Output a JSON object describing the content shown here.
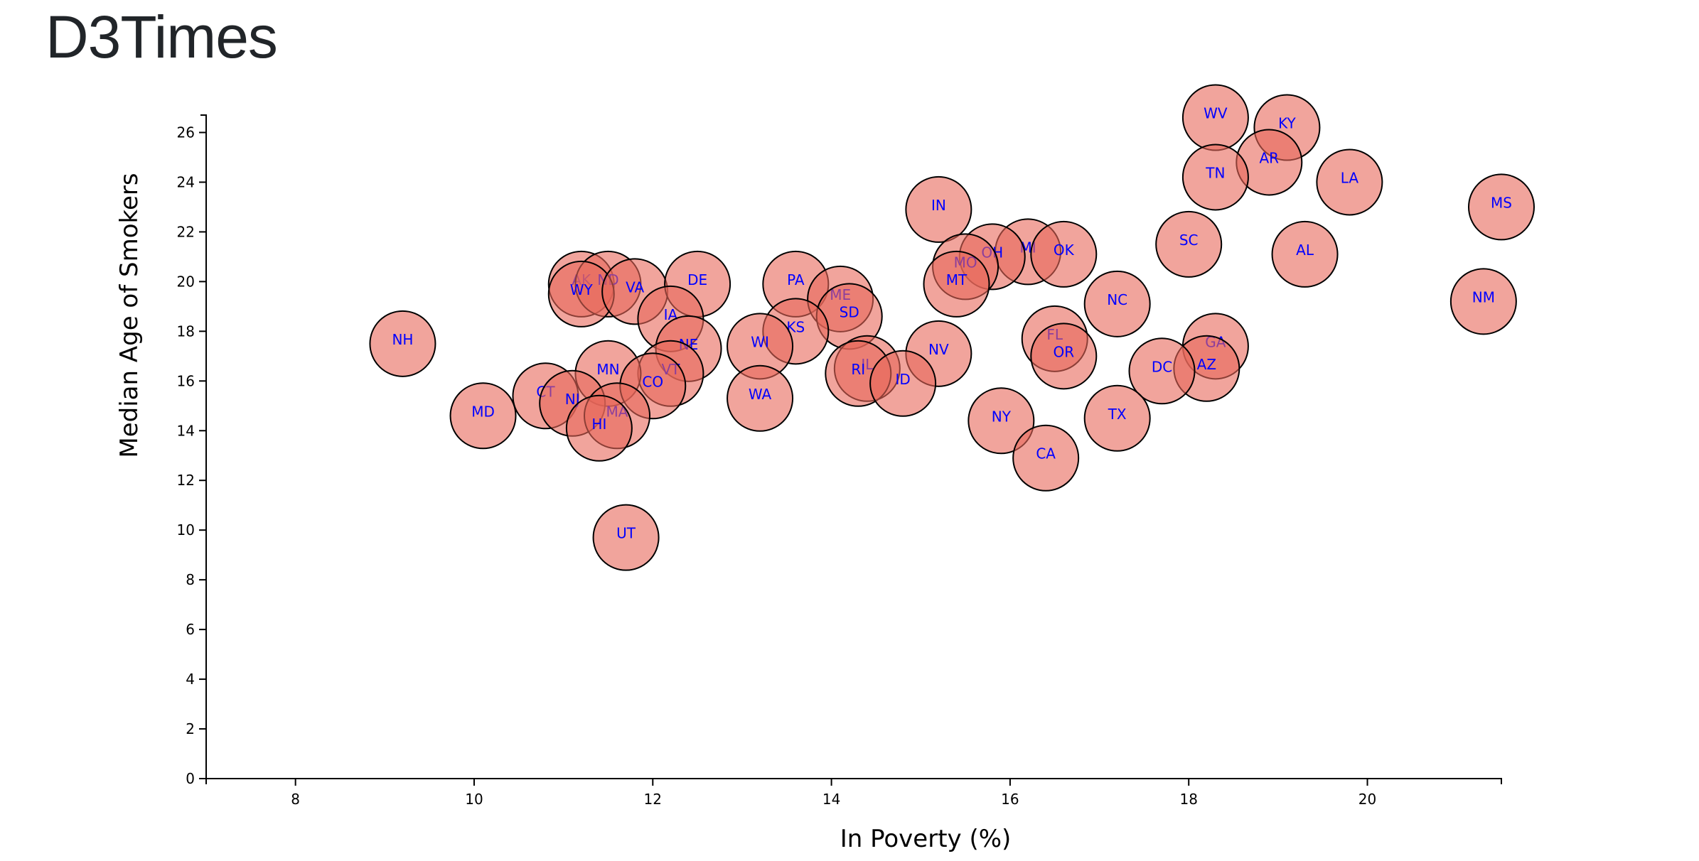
{
  "header": {
    "title": "D3Times"
  },
  "colors": {
    "bubble": "#e8685a",
    "label": "#0000ff",
    "axis": "#000000"
  },
  "chart_data": {
    "type": "scatter",
    "title": "",
    "xlabel": "In Poverty (%)",
    "ylabel": "Median Age of Smokers",
    "xlim": [
      7,
      21.5
    ],
    "ylim": [
      0,
      26.7
    ],
    "xticks": [
      8,
      10,
      12,
      14,
      16,
      18,
      20
    ],
    "yticks": [
      0,
      2,
      4,
      6,
      8,
      10,
      12,
      14,
      16,
      18,
      20,
      22,
      24,
      26
    ],
    "grid": false,
    "points": [
      {
        "label": "WV",
        "x": 18.3,
        "y": 26.6
      },
      {
        "label": "KY",
        "x": 19.1,
        "y": 26.2
      },
      {
        "label": "AR",
        "x": 18.9,
        "y": 24.8
      },
      {
        "label": "TN",
        "x": 18.3,
        "y": 24.2
      },
      {
        "label": "LA",
        "x": 19.8,
        "y": 24.0
      },
      {
        "label": "MS",
        "x": 21.5,
        "y": 23.0
      },
      {
        "label": "IN",
        "x": 15.2,
        "y": 22.9
      },
      {
        "label": "SC",
        "x": 18.0,
        "y": 21.5
      },
      {
        "label": "AL",
        "x": 19.3,
        "y": 21.1
      },
      {
        "label": "MI",
        "x": 16.2,
        "y": 21.2
      },
      {
        "label": "OK",
        "x": 16.6,
        "y": 21.1
      },
      {
        "label": "OH",
        "x": 15.8,
        "y": 21.0
      },
      {
        "label": "MO",
        "x": 15.5,
        "y": 20.6
      },
      {
        "label": "MT",
        "x": 15.4,
        "y": 19.9
      },
      {
        "label": "NC",
        "x": 17.2,
        "y": 19.1
      },
      {
        "label": "NM",
        "x": 21.3,
        "y": 19.2
      },
      {
        "label": "AK",
        "x": 11.2,
        "y": 19.9
      },
      {
        "label": "ND",
        "x": 11.5,
        "y": 19.9
      },
      {
        "label": "WY",
        "x": 11.2,
        "y": 19.5
      },
      {
        "label": "VA",
        "x": 11.8,
        "y": 19.6
      },
      {
        "label": "DE",
        "x": 12.5,
        "y": 19.9
      },
      {
        "label": "PA",
        "x": 13.6,
        "y": 19.9
      },
      {
        "label": "ME",
        "x": 14.1,
        "y": 19.3
      },
      {
        "label": "IA",
        "x": 12.2,
        "y": 18.5
      },
      {
        "label": "SD",
        "x": 14.2,
        "y": 18.6
      },
      {
        "label": "KS",
        "x": 13.6,
        "y": 18.0
      },
      {
        "label": "NH",
        "x": 9.2,
        "y": 17.5
      },
      {
        "label": "FL",
        "x": 16.5,
        "y": 17.7
      },
      {
        "label": "GA",
        "x": 18.3,
        "y": 17.4
      },
      {
        "label": "NE",
        "x": 12.4,
        "y": 17.3
      },
      {
        "label": "WI",
        "x": 13.2,
        "y": 17.4
      },
      {
        "label": "NV",
        "x": 15.2,
        "y": 17.1
      },
      {
        "label": "OR",
        "x": 16.6,
        "y": 17.0
      },
      {
        "label": "AZ",
        "x": 18.2,
        "y": 16.5
      },
      {
        "label": "DC",
        "x": 17.7,
        "y": 16.4
      },
      {
        "label": "IL",
        "x": 14.4,
        "y": 16.5
      },
      {
        "label": "RI",
        "x": 14.3,
        "y": 16.3
      },
      {
        "label": "VT",
        "x": 12.2,
        "y": 16.3
      },
      {
        "label": "MN",
        "x": 11.5,
        "y": 16.3
      },
      {
        "label": "ID",
        "x": 14.8,
        "y": 15.9
      },
      {
        "label": "CO",
        "x": 12.0,
        "y": 15.8
      },
      {
        "label": "CT",
        "x": 10.8,
        "y": 15.4
      },
      {
        "label": "NJ",
        "x": 11.1,
        "y": 15.1
      },
      {
        "label": "WA",
        "x": 13.2,
        "y": 15.3
      },
      {
        "label": "MA",
        "x": 11.6,
        "y": 14.6
      },
      {
        "label": "MD",
        "x": 10.1,
        "y": 14.6
      },
      {
        "label": "TX",
        "x": 17.2,
        "y": 14.5
      },
      {
        "label": "NY",
        "x": 15.9,
        "y": 14.4
      },
      {
        "label": "HI",
        "x": 11.4,
        "y": 14.1
      },
      {
        "label": "CA",
        "x": 16.4,
        "y": 12.9
      },
      {
        "label": "UT",
        "x": 11.7,
        "y": 9.7
      }
    ]
  }
}
